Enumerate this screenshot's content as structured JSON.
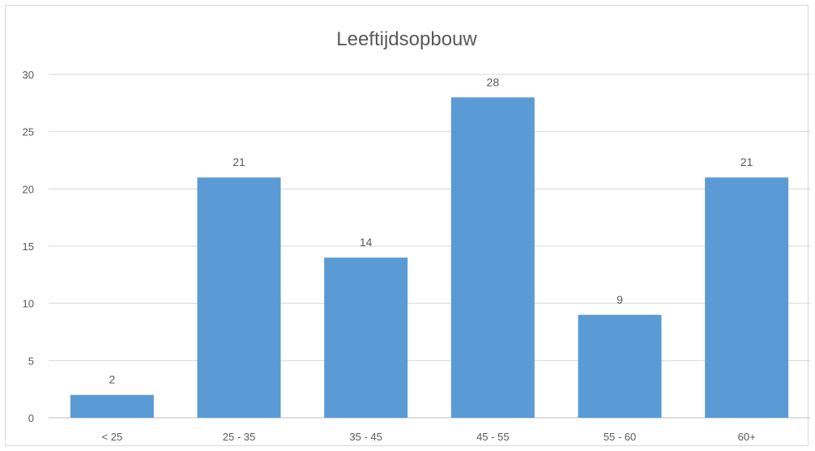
{
  "chart_data": {
    "type": "bar",
    "title": "Leeftijdsopbouw",
    "xlabel": "",
    "ylabel": "",
    "categories": [
      "< 25",
      "25 - 35",
      "35 - 45",
      "45 - 55",
      "55 - 60",
      "60+"
    ],
    "values": [
      2,
      21,
      14,
      28,
      9,
      21
    ],
    "data_labels": [
      "2",
      "21",
      "14",
      "28",
      "9",
      "21"
    ],
    "ylim": [
      0,
      30
    ],
    "yticks": [
      0,
      5,
      10,
      15,
      20,
      25,
      30
    ],
    "grid": true,
    "legend": "none",
    "colors": {
      "bar": "#5b9bd5",
      "grid": "#d9d9d9",
      "text": "#595959",
      "axis": "#bfbfbf"
    }
  }
}
